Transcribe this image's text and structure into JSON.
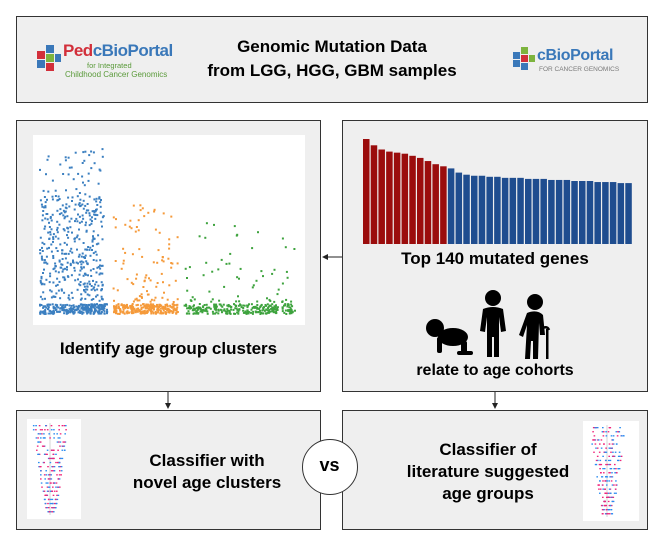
{
  "header": {
    "title_line1": "Genomic Mutation Data",
    "title_line2": "from LGG, HGG, GBM samples",
    "left_logo": {
      "name": "PedcBioPortal",
      "name_part1": "Ped",
      "name_part2": "cBioPortal",
      "sub1": "for Integrated",
      "sub2": "Childhood Cancer Genomics"
    },
    "right_logo": {
      "name": "cBioPortal",
      "sub": "FOR CANCER GENOMICS"
    }
  },
  "left_panel": {
    "caption": "Identify age group clusters"
  },
  "right_panel": {
    "caption1": "Top 140 mutated genes",
    "caption2": "relate to age cohorts"
  },
  "bottom_left": {
    "line1": "Classifier with",
    "line2": "novel age clusters"
  },
  "bottom_right": {
    "line1": "Classifier of",
    "line2": "literature suggested",
    "line3": "age groups"
  },
  "vs_label": "vs",
  "colors": {
    "blue_cluster": "#3b7fc0",
    "orange_cluster": "#f59a3a",
    "green_cluster": "#3ea33e",
    "bar_red": "#9b0d0d",
    "bar_blue": "#1f4d8f",
    "panel_bg": "#efefef"
  },
  "chart_data": [
    {
      "type": "scatter",
      "series": [
        {
          "color": "#3b7fc0",
          "x_range": [
            0,
            0.27
          ]
        },
        {
          "color": "#f59a3a",
          "x_range": [
            0.27,
            0.53
          ]
        },
        {
          "color": "#3ea33e",
          "x_range": [
            0.53,
            0.96
          ]
        }
      ]
    },
    {
      "type": "bar",
      "values": [
        100,
        94,
        90,
        88,
        87,
        86,
        84,
        82,
        79,
        76,
        74,
        72,
        68,
        66,
        65,
        65,
        64,
        64,
        63,
        63,
        63,
        62,
        62,
        62,
        61,
        61,
        61,
        60,
        60,
        60,
        59,
        59,
        59,
        58,
        58
      ],
      "highlight_count": 11
    }
  ]
}
